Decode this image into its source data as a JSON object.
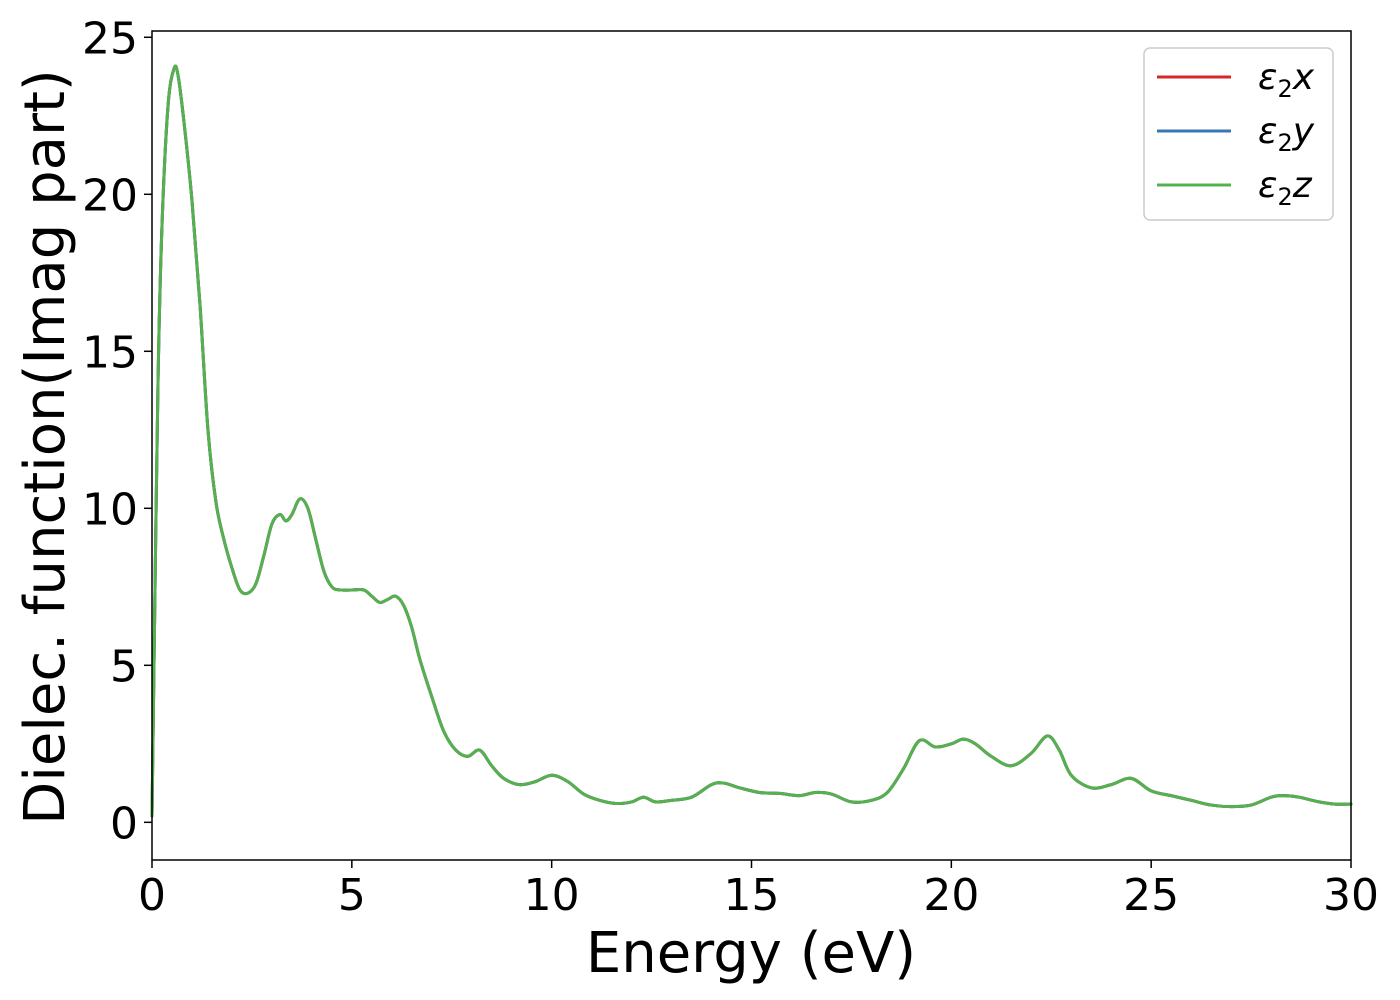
{
  "chart_data": {
    "type": "line",
    "xlabel": "Energy (eV)",
    "ylabel": "Dielec. function(Imag part)",
    "xlim": [
      0,
      30
    ],
    "ylim": [
      -1.2,
      25.2
    ],
    "xticks": [
      0,
      5,
      10,
      15,
      20,
      25,
      30
    ],
    "yticks": [
      0,
      5,
      10,
      15,
      20,
      25
    ],
    "legend_position": "top-right",
    "grid": false,
    "x": [
      0,
      0.05,
      0.15,
      0.25,
      0.4,
      0.55,
      0.65,
      0.8,
      1.0,
      1.2,
      1.4,
      1.6,
      1.8,
      2.0,
      2.2,
      2.4,
      2.6,
      2.8,
      3.0,
      3.2,
      3.35,
      3.5,
      3.7,
      3.9,
      4.1,
      4.3,
      4.5,
      4.7,
      5.0,
      5.3,
      5.5,
      5.7,
      5.9,
      6.1,
      6.3,
      6.5,
      6.7,
      7.0,
      7.3,
      7.6,
      7.9,
      8.2,
      8.5,
      8.8,
      9.2,
      9.6,
      10.0,
      10.4,
      10.8,
      11.2,
      11.6,
      12.0,
      12.3,
      12.6,
      13.0,
      13.5,
      14.0,
      14.3,
      14.7,
      15.2,
      15.7,
      16.2,
      16.6,
      17.0,
      17.5,
      18.0,
      18.4,
      18.8,
      19.2,
      19.6,
      20.0,
      20.3,
      20.6,
      21.0,
      21.5,
      22.0,
      22.4,
      22.7,
      23.0,
      23.5,
      24.0,
      24.5,
      25.0,
      25.5,
      26.0,
      26.5,
      27.0,
      27.5,
      28.0,
      28.3,
      28.7,
      29.2,
      29.6,
      30.0
    ],
    "series": [
      {
        "name": "x",
        "color": "#d62728",
        "values": [
          0.2,
          5.0,
          14.0,
          19.0,
          22.8,
          24.0,
          23.8,
          22.3,
          19.8,
          16.5,
          12.5,
          10.2,
          9.0,
          8.1,
          7.4,
          7.3,
          7.6,
          8.5,
          9.5,
          9.8,
          9.6,
          9.8,
          10.3,
          10.0,
          9.0,
          8.0,
          7.5,
          7.4,
          7.4,
          7.4,
          7.2,
          7.0,
          7.1,
          7.2,
          6.9,
          6.2,
          5.2,
          4.0,
          2.9,
          2.3,
          2.1,
          2.3,
          1.8,
          1.4,
          1.2,
          1.3,
          1.5,
          1.3,
          0.9,
          0.7,
          0.6,
          0.65,
          0.8,
          0.65,
          0.7,
          0.8,
          1.2,
          1.25,
          1.1,
          0.95,
          0.92,
          0.85,
          0.95,
          0.9,
          0.65,
          0.7,
          0.95,
          1.7,
          2.6,
          2.4,
          2.5,
          2.65,
          2.5,
          2.1,
          1.8,
          2.2,
          2.75,
          2.3,
          1.5,
          1.1,
          1.2,
          1.4,
          1.0,
          0.85,
          0.7,
          0.55,
          0.5,
          0.55,
          0.8,
          0.85,
          0.8,
          0.65,
          0.58,
          0.58
        ]
      },
      {
        "name": "y",
        "color": "#3a75b4",
        "values": [
          0.2,
          5.0,
          14.0,
          19.0,
          22.8,
          24.0,
          23.8,
          22.3,
          19.8,
          16.5,
          12.5,
          10.2,
          9.0,
          8.1,
          7.4,
          7.3,
          7.6,
          8.5,
          9.5,
          9.8,
          9.6,
          9.8,
          10.3,
          10.0,
          9.0,
          8.0,
          7.5,
          7.4,
          7.4,
          7.4,
          7.2,
          7.0,
          7.1,
          7.2,
          6.9,
          6.2,
          5.2,
          4.0,
          2.9,
          2.3,
          2.1,
          2.3,
          1.8,
          1.4,
          1.2,
          1.3,
          1.5,
          1.3,
          0.9,
          0.7,
          0.6,
          0.65,
          0.8,
          0.65,
          0.7,
          0.8,
          1.2,
          1.25,
          1.1,
          0.95,
          0.92,
          0.85,
          0.95,
          0.9,
          0.65,
          0.7,
          0.95,
          1.7,
          2.6,
          2.4,
          2.5,
          2.65,
          2.5,
          2.1,
          1.8,
          2.2,
          2.75,
          2.3,
          1.5,
          1.1,
          1.2,
          1.4,
          1.0,
          0.85,
          0.7,
          0.55,
          0.5,
          0.55,
          0.8,
          0.85,
          0.8,
          0.65,
          0.58,
          0.58
        ]
      },
      {
        "name": "z",
        "color": "#55b04e",
        "values": [
          0.2,
          5.0,
          14.0,
          19.0,
          22.8,
          24.0,
          23.8,
          22.3,
          19.8,
          16.5,
          12.5,
          10.2,
          9.0,
          8.1,
          7.4,
          7.3,
          7.6,
          8.5,
          9.5,
          9.8,
          9.6,
          9.8,
          10.3,
          10.0,
          9.0,
          8.0,
          7.5,
          7.4,
          7.4,
          7.4,
          7.2,
          7.0,
          7.1,
          7.2,
          6.9,
          6.2,
          5.2,
          4.0,
          2.9,
          2.3,
          2.1,
          2.3,
          1.8,
          1.4,
          1.2,
          1.3,
          1.5,
          1.3,
          0.9,
          0.7,
          0.6,
          0.65,
          0.8,
          0.65,
          0.7,
          0.8,
          1.2,
          1.25,
          1.1,
          0.95,
          0.92,
          0.85,
          0.95,
          0.9,
          0.65,
          0.7,
          0.95,
          1.7,
          2.6,
          2.4,
          2.5,
          2.65,
          2.5,
          2.1,
          1.8,
          2.2,
          2.75,
          2.3,
          1.5,
          1.1,
          1.2,
          1.4,
          1.0,
          0.85,
          0.7,
          0.55,
          0.5,
          0.55,
          0.8,
          0.85,
          0.8,
          0.65,
          0.58,
          0.58
        ]
      }
    ],
    "legend": [
      {
        "symbol": "ε",
        "sub": "2",
        "var": "x"
      },
      {
        "symbol": "ε",
        "sub": "2",
        "var": "y"
      },
      {
        "symbol": "ε",
        "sub": "2",
        "var": "z"
      }
    ]
  }
}
